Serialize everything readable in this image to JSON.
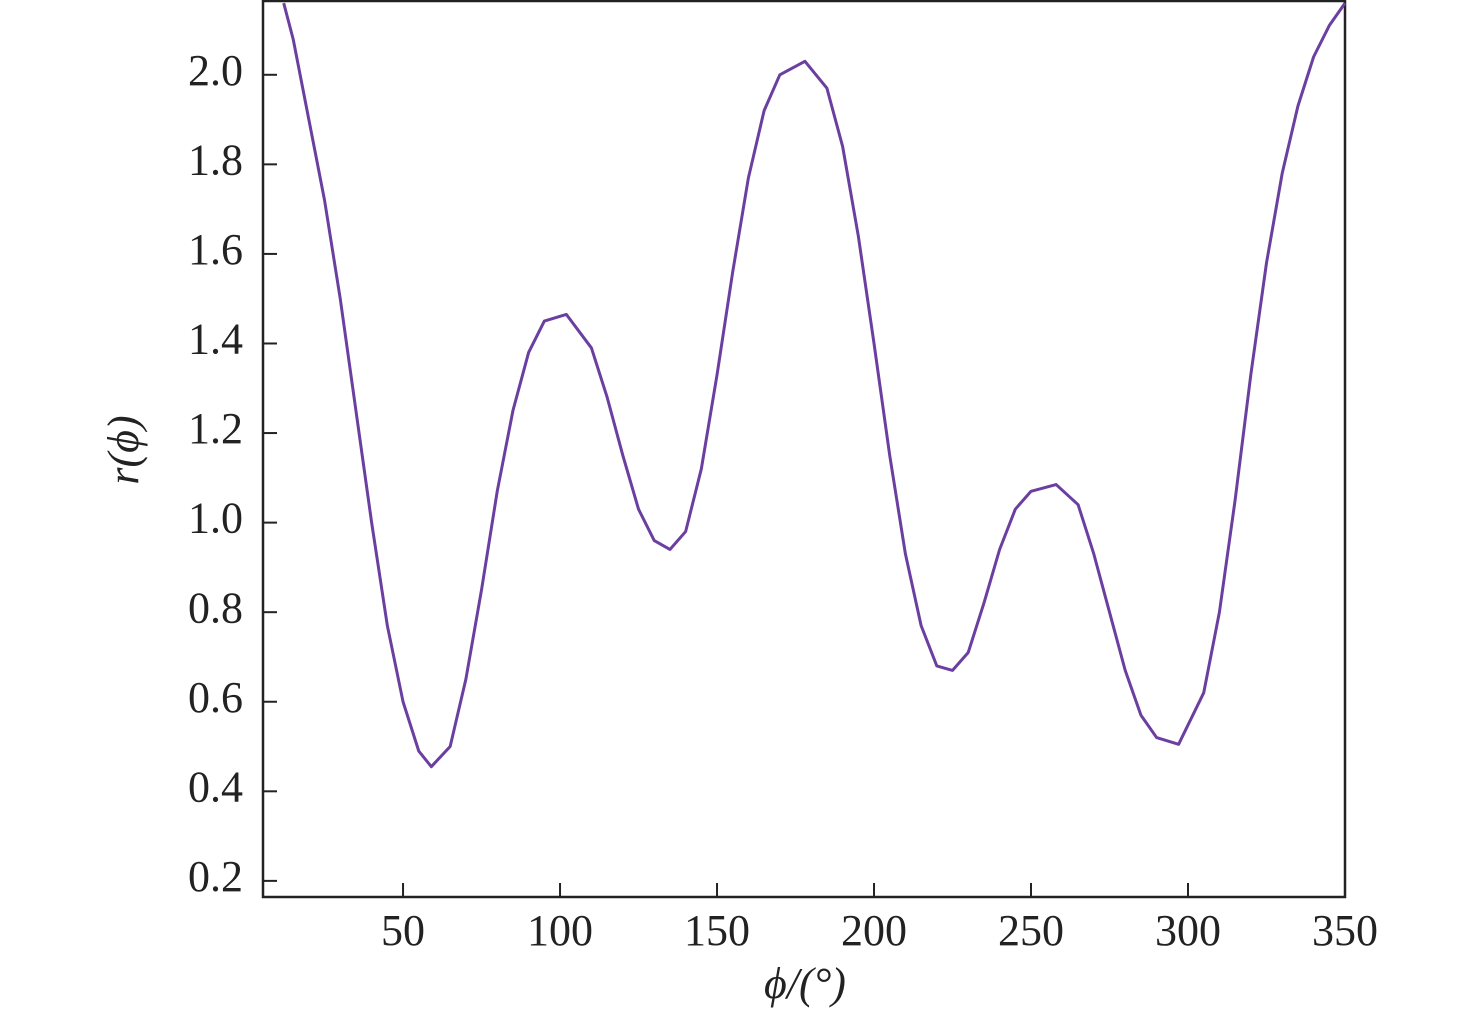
{
  "chart_data": {
    "type": "line",
    "xlabel": "ϕ/(°)",
    "ylabel": "r(ϕ)",
    "x": [
      12,
      15,
      20,
      25,
      30,
      35,
      40,
      45,
      50,
      55,
      59,
      65,
      70,
      75,
      80,
      85,
      90,
      95,
      102,
      110,
      115,
      120,
      125,
      130,
      135,
      140,
      145,
      150,
      155,
      160,
      165,
      170,
      178,
      185,
      190,
      195,
      200,
      205,
      210,
      215,
      220,
      225,
      230,
      235,
      240,
      245,
      250,
      258,
      265,
      270,
      275,
      280,
      285,
      290,
      297,
      305,
      310,
      315,
      320,
      325,
      330,
      335,
      340,
      345,
      350
    ],
    "series": [
      {
        "name": "r(ϕ)",
        "color": "#6b3fa0",
        "values": [
          2.16,
          2.08,
          1.9,
          1.72,
          1.5,
          1.25,
          1.0,
          0.77,
          0.6,
          0.49,
          0.455,
          0.5,
          0.65,
          0.85,
          1.07,
          1.25,
          1.38,
          1.45,
          1.465,
          1.39,
          1.28,
          1.15,
          1.03,
          0.96,
          0.94,
          0.98,
          1.12,
          1.33,
          1.56,
          1.77,
          1.92,
          2.0,
          2.03,
          1.97,
          1.84,
          1.64,
          1.4,
          1.15,
          0.93,
          0.77,
          0.68,
          0.67,
          0.71,
          0.82,
          0.94,
          1.03,
          1.07,
          1.085,
          1.04,
          0.93,
          0.8,
          0.67,
          0.57,
          0.52,
          0.505,
          0.62,
          0.8,
          1.05,
          1.33,
          1.58,
          1.78,
          1.93,
          2.04,
          2.11,
          2.16
        ]
      }
    ],
    "xlim": [
      5.4,
      350
    ],
    "xticks": [
      50,
      100,
      150,
      200,
      250,
      300,
      350
    ],
    "ylim": [
      0.164,
      2.167
    ],
    "yticks": [
      0.2,
      0.4,
      0.6,
      0.8,
      {
        "value": 1,
        "label": "1.0"
      },
      1.2,
      1.4,
      1.6,
      1.8,
      {
        "value": 2,
        "label": "2.0"
      }
    ],
    "grid": false
  }
}
